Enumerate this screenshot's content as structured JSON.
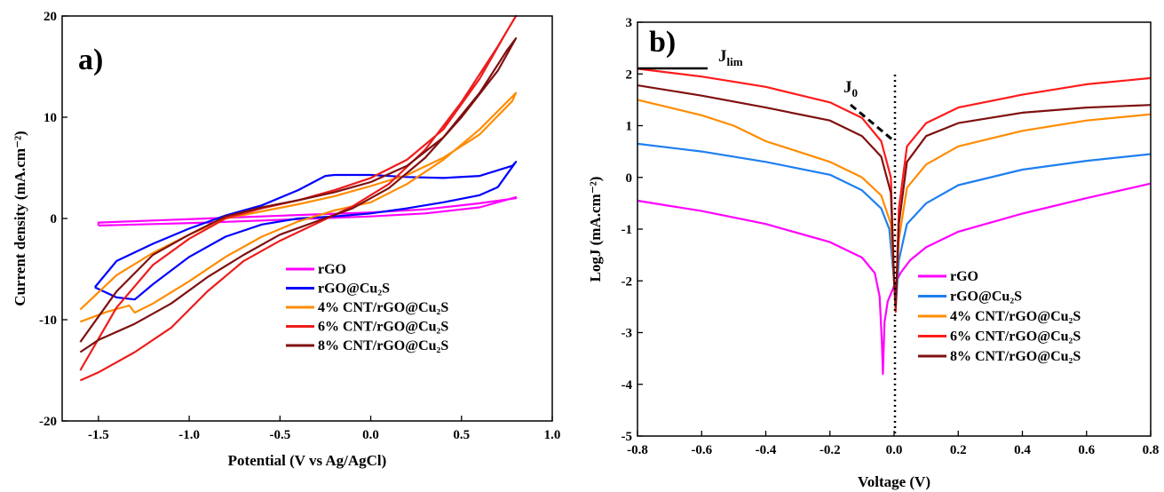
{
  "chart_data": [
    {
      "panel": "a)",
      "type": "line",
      "xlabel": "Potential (V vs Ag/AgCl)",
      "ylabel": "Current density (mA.cm⁻²)",
      "xlim": [
        -1.7,
        1.0
      ],
      "ylim": [
        -20,
        20
      ],
      "xticks": [
        -1.5,
        -1.0,
        -0.5,
        0.0,
        0.5,
        1.0
      ],
      "xtick_labels": [
        "-1.5",
        "-1.0",
        "-0.5",
        "0.0",
        "0.5",
        "1.0"
      ],
      "yticks": [
        -20,
        -10,
        0,
        10,
        20
      ],
      "ytick_labels": [
        "-20",
        "-10",
        "0",
        "10",
        "20"
      ],
      "legend_position": "bottom-right",
      "series": [
        {
          "name": "rGO",
          "color": "#ff00ff",
          "x": [
            -1.5,
            -1.2,
            -0.9,
            -0.6,
            -0.3,
            0.0,
            0.3,
            0.6,
            0.8,
            0.8,
            0.6,
            0.3,
            0.0,
            -0.3,
            -0.6,
            -0.9,
            -1.2,
            -1.5,
            -1.5
          ],
          "y": [
            -0.7,
            -0.55,
            -0.4,
            -0.2,
            0.0,
            0.2,
            0.5,
            1.1,
            2.1,
            2.0,
            1.5,
            0.9,
            0.6,
            0.4,
            0.2,
            0.0,
            -0.2,
            -0.4,
            -0.7
          ]
        },
        {
          "name": "rGO@Cu₂S",
          "color": "#0000ff",
          "x": [
            -1.52,
            -1.4,
            -1.3,
            -1.2,
            -1.0,
            -0.8,
            -0.6,
            -0.4,
            -0.2,
            0.0,
            0.2,
            0.4,
            0.6,
            0.7,
            0.8,
            0.78,
            0.6,
            0.4,
            0.2,
            0.0,
            -0.2,
            -0.25,
            -0.4,
            -0.6,
            -0.8,
            -1.0,
            -1.2,
            -1.4,
            -1.52
          ],
          "y": [
            -6.8,
            -7.8,
            -8.0,
            -6.5,
            -3.8,
            -1.8,
            -0.6,
            0.0,
            0.2,
            0.5,
            1.0,
            1.6,
            2.3,
            3.1,
            5.6,
            5.2,
            4.2,
            4.0,
            4.1,
            4.3,
            4.3,
            4.2,
            2.8,
            1.3,
            0.3,
            -1.0,
            -2.5,
            -4.2,
            -6.8
          ]
        },
        {
          "name": "4% CNT/rGO@Cu₂S",
          "color": "#ff8c00",
          "x": [
            -1.6,
            -1.45,
            -1.33,
            -1.3,
            -1.2,
            -1.0,
            -0.8,
            -0.6,
            -0.4,
            -0.2,
            0.0,
            0.2,
            0.4,
            0.6,
            0.8,
            0.78,
            0.6,
            0.4,
            0.2,
            0.0,
            -0.2,
            -0.4,
            -0.6,
            -0.8,
            -1.0,
            -1.2,
            -1.4,
            -1.6
          ],
          "y": [
            -10.2,
            -9.2,
            -8.6,
            -9.3,
            -8.4,
            -6.2,
            -3.8,
            -1.8,
            -0.3,
            0.8,
            1.6,
            3.4,
            5.8,
            8.8,
            12.4,
            11.6,
            8.3,
            6.0,
            4.3,
            3.2,
            2.2,
            1.4,
            0.7,
            0.0,
            -1.6,
            -3.4,
            -5.6,
            -9.0
          ]
        },
        {
          "name": "6% CNT/rGO@Cu₂S",
          "color": "#ee1c1c",
          "x": [
            -1.6,
            -1.5,
            -1.3,
            -1.1,
            -0.9,
            -0.7,
            -0.5,
            -0.3,
            -0.1,
            0.1,
            0.3,
            0.5,
            0.7,
            0.8,
            0.75,
            0.6,
            0.4,
            0.2,
            0.0,
            -0.2,
            -0.4,
            -0.6,
            -0.8,
            -1.0,
            -1.2,
            -1.4,
            -1.6
          ],
          "y": [
            -16.0,
            -15.2,
            -13.2,
            -10.8,
            -7.2,
            -4.2,
            -2.2,
            -0.5,
            1.2,
            3.4,
            6.8,
            11.5,
            17.0,
            20.0,
            18.5,
            13.8,
            8.8,
            5.8,
            4.0,
            2.8,
            1.8,
            1.0,
            0.0,
            -2.0,
            -4.6,
            -8.8,
            -15.0
          ]
        },
        {
          "name": "8% CNT/rGO@Cu₂S",
          "color": "#7f1010",
          "x": [
            -1.6,
            -1.5,
            -1.3,
            -1.1,
            -0.9,
            -0.7,
            -0.5,
            -0.3,
            -0.1,
            0.1,
            0.3,
            0.5,
            0.7,
            0.8,
            0.75,
            0.6,
            0.4,
            0.2,
            0.0,
            -0.2,
            -0.4,
            -0.6,
            -0.8,
            -1.0,
            -1.2,
            -1.4,
            -1.6
          ],
          "y": [
            -13.2,
            -12.0,
            -10.4,
            -8.4,
            -5.8,
            -3.6,
            -1.6,
            -0.3,
            1.0,
            3.0,
            6.0,
            10.0,
            14.6,
            17.8,
            16.6,
            12.4,
            8.0,
            5.2,
            3.6,
            2.6,
            1.8,
            1.1,
            0.2,
            -1.6,
            -3.6,
            -7.2,
            -12.2
          ]
        }
      ]
    },
    {
      "panel": "b)",
      "type": "line",
      "xlabel": "Voltage (V)",
      "ylabel": "LogJ (mA.cm⁻²)",
      "xlim": [
        -0.8,
        0.8
      ],
      "ylim": [
        -5,
        3
      ],
      "xticks": [
        -0.8,
        -0.6,
        -0.4,
        -0.2,
        0.0,
        0.2,
        0.4,
        0.6,
        0.8
      ],
      "xtick_labels": [
        "-0.8",
        "-0.6",
        "-0.4",
        "-0.2",
        "0.0",
        "0.2",
        "0.4",
        "0.6",
        "0.8"
      ],
      "yticks": [
        -5,
        -4,
        -3,
        -2,
        -1,
        0,
        1,
        2,
        3
      ],
      "ytick_labels": [
        "-5",
        "-4",
        "-3",
        "-2",
        "-1",
        "0",
        "1",
        "2",
        "3"
      ],
      "legend_position": "bottom-right",
      "annotations": {
        "jlim": "J",
        "jlim_sub": "lim",
        "j0": "J",
        "j0_sub": "0"
      },
      "series": [
        {
          "name": "rGO",
          "color": "#ff00ff",
          "x": [
            -0.8,
            -0.6,
            -0.4,
            -0.2,
            -0.1,
            -0.06,
            -0.045,
            -0.038,
            -0.035,
            -0.03,
            -0.02,
            0.0,
            0.02,
            0.05,
            0.1,
            0.2,
            0.4,
            0.6,
            0.8
          ],
          "y": [
            -0.45,
            -0.65,
            -0.9,
            -1.25,
            -1.55,
            -1.85,
            -2.3,
            -3.2,
            -3.8,
            -2.8,
            -2.4,
            -2.1,
            -1.85,
            -1.6,
            -1.35,
            -1.05,
            -0.7,
            -0.4,
            -0.12
          ]
        },
        {
          "name": "rGO@Cu₂S",
          "color": "#1e7ff0",
          "x": [
            -0.8,
            -0.6,
            -0.4,
            -0.2,
            -0.1,
            -0.04,
            -0.015,
            0.0,
            0.005,
            0.015,
            0.04,
            0.1,
            0.2,
            0.4,
            0.6,
            0.8
          ],
          "y": [
            0.65,
            0.5,
            0.3,
            0.05,
            -0.25,
            -0.6,
            -1.0,
            -2.0,
            -2.5,
            -1.6,
            -0.9,
            -0.5,
            -0.15,
            0.15,
            0.32,
            0.45
          ]
        },
        {
          "name": "4% CNT/rGO@Cu₂S",
          "color": "#ff8c00",
          "x": [
            -0.8,
            -0.7,
            -0.6,
            -0.5,
            -0.4,
            -0.35,
            -0.3,
            -0.2,
            -0.1,
            -0.04,
            -0.01,
            0.0,
            0.005,
            0.015,
            0.04,
            0.1,
            0.2,
            0.4,
            0.6,
            0.8
          ],
          "y": [
            1.5,
            1.35,
            1.2,
            1.0,
            0.7,
            0.6,
            0.5,
            0.3,
            0.0,
            -0.35,
            -0.9,
            -2.0,
            -2.4,
            -1.2,
            -0.2,
            0.25,
            0.6,
            0.9,
            1.1,
            1.22
          ]
        },
        {
          "name": "6% CNT/rGO@Cu₂S",
          "color": "#ff1a1a",
          "x": [
            -0.8,
            -0.6,
            -0.4,
            -0.2,
            -0.1,
            -0.04,
            -0.01,
            0.0,
            0.005,
            0.015,
            0.04,
            0.1,
            0.2,
            0.4,
            0.6,
            0.8
          ],
          "y": [
            2.1,
            1.95,
            1.75,
            1.45,
            1.15,
            0.7,
            0.0,
            -2.0,
            -2.6,
            -0.6,
            0.6,
            1.05,
            1.35,
            1.6,
            1.8,
            1.92
          ]
        },
        {
          "name": "8% CNT/rGO@Cu₂S",
          "color": "#7f1010",
          "x": [
            -0.8,
            -0.6,
            -0.4,
            -0.2,
            -0.1,
            -0.04,
            -0.01,
            0.0,
            0.005,
            0.015,
            0.04,
            0.1,
            0.2,
            0.4,
            0.6,
            0.8
          ],
          "y": [
            1.78,
            1.58,
            1.35,
            1.1,
            0.8,
            0.4,
            -0.3,
            -2.0,
            -2.5,
            -0.9,
            0.3,
            0.8,
            1.05,
            1.25,
            1.35,
            1.4
          ]
        }
      ]
    }
  ]
}
